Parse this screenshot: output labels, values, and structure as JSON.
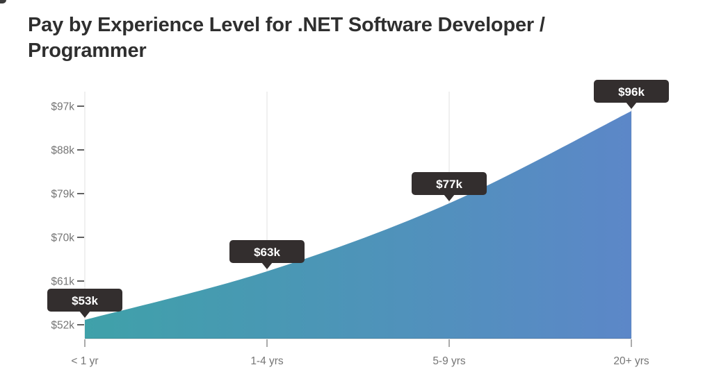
{
  "header": {
    "title_lines": [
      "Pay by Experience Level for .NET Software Developer /",
      "Programmer"
    ]
  },
  "chart_data": {
    "type": "area",
    "title": "Pay by Experience Level for .NET Software Developer / Programmer",
    "categories": [
      "< 1 yr",
      "1-4 yrs",
      "5-9 yrs",
      "20+ yrs"
    ],
    "values": [
      53,
      63,
      77,
      96
    ],
    "point_labels": [
      "$53k",
      "$63k",
      "$77k",
      "$96k"
    ],
    "y_tick_values": [
      52,
      61,
      70,
      79,
      88,
      97
    ],
    "y_tick_labels": [
      "$52k",
      "$61k",
      "$70k",
      "$79k",
      "$88k",
      "$97k"
    ],
    "ylim": [
      49,
      102
    ],
    "xlabel": "",
    "ylabel": "",
    "grid": "vertical-only",
    "legend": false,
    "colors": {
      "gradient_start": "#3fa1a9",
      "gradient_end": "#5c87c8",
      "tooltip_bg": "#332e2e",
      "tooltip_text": "#ffffff",
      "axis_label": "#757575",
      "gridline": "#e0e0e0",
      "tick": "#8f8f8f",
      "title": "#2f2f2f"
    }
  }
}
